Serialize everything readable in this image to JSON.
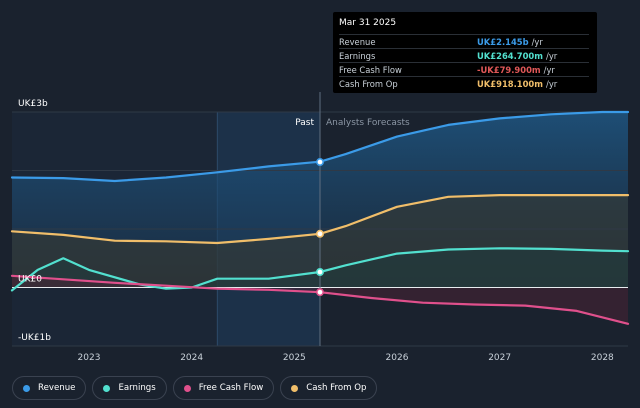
{
  "chart_data": {
    "type": "line",
    "y_axis": {
      "ylim": [
        -1,
        3
      ],
      "labels": [
        {
          "text": "UK£3b",
          "value": 3
        },
        {
          "text": "UK£0",
          "value": 0
        },
        {
          "text": "-UK£1b",
          "value": -1
        }
      ]
    },
    "x_axis": {
      "xlim": [
        2022.25,
        2028.25
      ],
      "ticks": [
        "2023",
        "2024",
        "2025",
        "2026",
        "2027",
        "2028"
      ]
    },
    "past_label": "Past",
    "forecast_label": "Analysts Forecasts",
    "divider_x": 2025.25,
    "highlight_range": [
      2024.25,
      2025.25
    ],
    "series": [
      {
        "name": "Revenue",
        "color": "#3b9be8",
        "points": [
          [
            2022.25,
            1.88
          ],
          [
            2022.75,
            1.87
          ],
          [
            2023.25,
            1.82
          ],
          [
            2023.75,
            1.88
          ],
          [
            2024.25,
            1.97
          ],
          [
            2024.75,
            2.07
          ],
          [
            2025.25,
            2.15
          ],
          [
            2025.5,
            2.28
          ],
          [
            2026,
            2.58
          ],
          [
            2026.5,
            2.78
          ],
          [
            2027,
            2.89
          ],
          [
            2027.5,
            2.96
          ],
          [
            2028,
            3.0
          ],
          [
            2028.25,
            3.0
          ]
        ]
      },
      {
        "name": "Earnings",
        "color": "#52e0cf",
        "points": [
          [
            2022.25,
            -0.05
          ],
          [
            2022.5,
            0.3
          ],
          [
            2022.75,
            0.5
          ],
          [
            2023,
            0.3
          ],
          [
            2023.5,
            0.05
          ],
          [
            2023.75,
            -0.02
          ],
          [
            2024,
            0.0
          ],
          [
            2024.25,
            0.15
          ],
          [
            2024.75,
            0.15
          ],
          [
            2025.25,
            0.265
          ],
          [
            2025.5,
            0.38
          ],
          [
            2026,
            0.58
          ],
          [
            2026.5,
            0.65
          ],
          [
            2027,
            0.67
          ],
          [
            2027.5,
            0.66
          ],
          [
            2028,
            0.63
          ],
          [
            2028.25,
            0.62
          ]
        ]
      },
      {
        "name": "Free Cash Flow",
        "color": "#e0508c",
        "points": [
          [
            2022.25,
            0.2
          ],
          [
            2022.75,
            0.14
          ],
          [
            2023.25,
            0.08
          ],
          [
            2023.75,
            0.03
          ],
          [
            2024.25,
            -0.02
          ],
          [
            2024.75,
            -0.04
          ],
          [
            2025.25,
            -0.08
          ],
          [
            2025.75,
            -0.18
          ],
          [
            2026.25,
            -0.26
          ],
          [
            2026.75,
            -0.29
          ],
          [
            2027.25,
            -0.31
          ],
          [
            2027.75,
            -0.4
          ],
          [
            2028.25,
            -0.62
          ]
        ]
      },
      {
        "name": "Cash From Op",
        "color": "#f0be6a",
        "points": [
          [
            2022.25,
            0.96
          ],
          [
            2022.75,
            0.9
          ],
          [
            2023.25,
            0.8
          ],
          [
            2023.75,
            0.79
          ],
          [
            2024.25,
            0.76
          ],
          [
            2024.75,
            0.83
          ],
          [
            2025.25,
            0.918
          ],
          [
            2025.5,
            1.05
          ],
          [
            2026,
            1.38
          ],
          [
            2026.5,
            1.55
          ],
          [
            2027,
            1.58
          ],
          [
            2027.5,
            1.58
          ],
          [
            2028,
            1.58
          ],
          [
            2028.25,
            1.58
          ]
        ]
      }
    ],
    "markers": [
      {
        "series": "Revenue",
        "x": 2025.25,
        "y": 2.145
      },
      {
        "series": "Earnings",
        "x": 2025.25,
        "y": 0.2647
      },
      {
        "series": "Free Cash Flow",
        "x": 2025.25,
        "y": -0.0799
      },
      {
        "series": "Cash From Op",
        "x": 2025.25,
        "y": 0.9181
      }
    ]
  },
  "tooltip": {
    "date": "Mar 31 2025",
    "rows": [
      {
        "name": "Revenue",
        "value": "UK£2.145b",
        "unit": "/yr",
        "color": "#3b9be8"
      },
      {
        "name": "Earnings",
        "value": "UK£264.700m",
        "unit": "/yr",
        "color": "#52e0cf"
      },
      {
        "name": "Free Cash Flow",
        "value": "-UK£79.900m",
        "unit": "/yr",
        "color": "#e05858"
      },
      {
        "name": "Cash From Op",
        "value": "UK£918.100m",
        "unit": "/yr",
        "color": "#f0be6a"
      }
    ]
  },
  "legend": [
    {
      "label": "Revenue",
      "color": "#3b9be8"
    },
    {
      "label": "Earnings",
      "color": "#52e0cf"
    },
    {
      "label": "Free Cash Flow",
      "color": "#e0508c"
    },
    {
      "label": "Cash From Op",
      "color": "#f0be6a"
    }
  ]
}
